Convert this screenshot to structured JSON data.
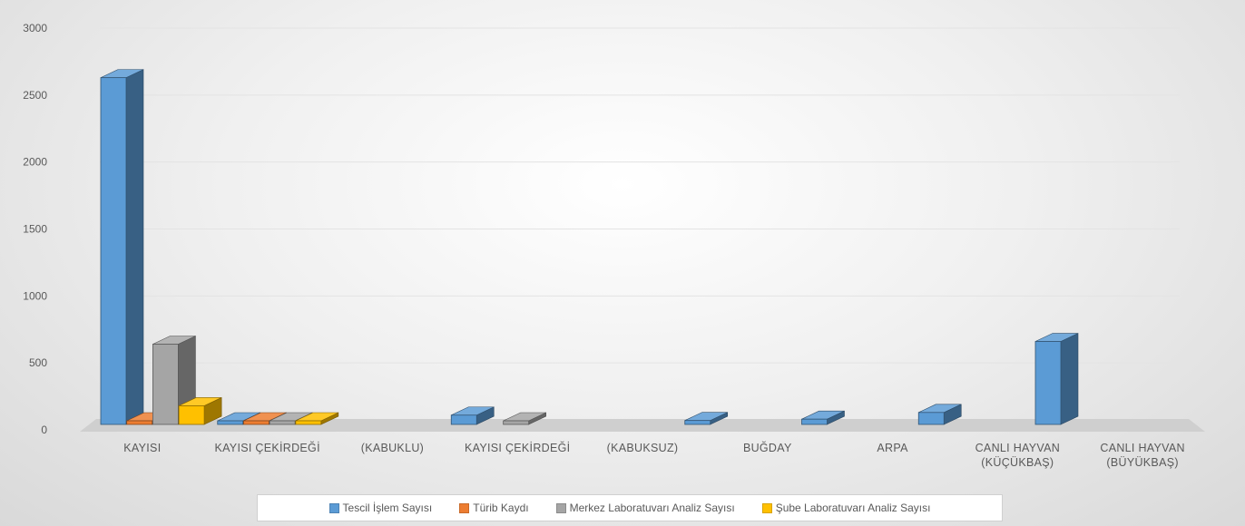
{
  "chart_data": {
    "type": "bar",
    "style": "3d-clustered-column",
    "categories": [
      "KAYISI",
      "KAYISI ÇEKİRDEĞİ",
      "(KABUKLU)",
      "KAYISI ÇEKİRDEĞİ",
      "(KABUKSUZ)",
      "BUĞDAY",
      "ARPA",
      "CANLI HAYVAN (KÜÇÜKBAŞ)",
      "CANLI HAYVAN (BÜYÜKBAŞ)"
    ],
    "category_lines": [
      [
        "KAYISI"
      ],
      [
        "KAYISI ÇEKİRDEĞİ"
      ],
      [
        "(KABUKLU)"
      ],
      [
        "KAYISI ÇEKİRDEĞİ"
      ],
      [
        "(KABUKSUZ)"
      ],
      [
        "BUĞDAY"
      ],
      [
        "ARPA"
      ],
      [
        "CANLI HAYVAN",
        "(KÜÇÜKBAŞ)"
      ],
      [
        "CANLI HAYVAN",
        "(BÜYÜKBAŞ)"
      ]
    ],
    "bar_slots": [
      0,
      1,
      null,
      3,
      null,
      5,
      6,
      7,
      8
    ],
    "series": [
      {
        "name": "Tescil İşlem Sayısı",
        "color": "#5b9bd5",
        "values": [
          2630,
          50,
          null,
          110,
          null,
          70,
          80,
          130,
          660
        ]
      },
      {
        "name": "Türib Kaydı",
        "color": "#ed7d31",
        "values": [
          40,
          20,
          null,
          0,
          null,
          0,
          0,
          0,
          0
        ]
      },
      {
        "name": "Merkez Laboratuvarı Analiz Sayısı",
        "color": "#a5a5a5",
        "values": [
          640,
          30,
          null,
          30,
          null,
          0,
          0,
          0,
          0
        ]
      },
      {
        "name": "Şube Laboratuvarı Analiz Sayısı",
        "color": "#ffc000",
        "values": [
          180,
          10,
          null,
          0,
          null,
          0,
          0,
          0,
          0
        ]
      }
    ],
    "ylim": [
      0,
      3000
    ],
    "yticks": [
      0,
      500,
      1000,
      1500,
      2000,
      2500,
      3000
    ],
    "grid": true,
    "legend_position": "bottom"
  }
}
